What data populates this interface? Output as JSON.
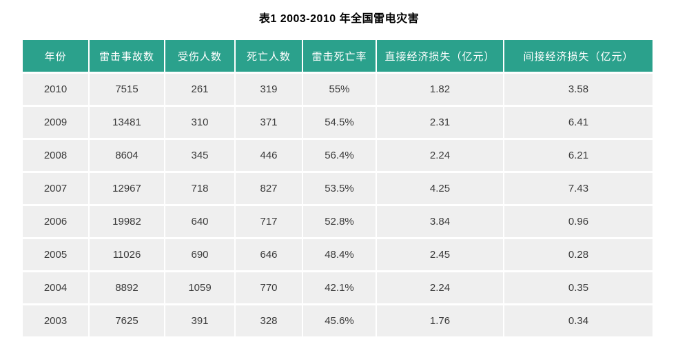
{
  "title": "表1 2003-2010 年全国雷电灾害",
  "colors": {
    "header_bg": "#2BA18C",
    "header_text": "#FFFFFF",
    "row_bg": "#EFEFEF",
    "cell_text": "#3A3A3A",
    "page_bg": "#FFFFFF"
  },
  "table": {
    "columns": [
      "年份",
      "雷击事故数",
      "受伤人数",
      "死亡人数",
      "雷击死亡率",
      "直接经济损失（亿元）",
      "间接经济损失（亿元）"
    ],
    "rows": [
      [
        "2010",
        "7515",
        "261",
        "319",
        "55%",
        "1.82",
        "3.58"
      ],
      [
        "2009",
        "13481",
        "310",
        "371",
        "54.5%",
        "2.31",
        "6.41"
      ],
      [
        "2008",
        "8604",
        "345",
        "446",
        "56.4%",
        "2.24",
        "6.21"
      ],
      [
        "2007",
        "12967",
        "718",
        "827",
        "53.5%",
        "4.25",
        "7.43"
      ],
      [
        "2006",
        "19982",
        "640",
        "717",
        "52.8%",
        "3.84",
        "0.96"
      ],
      [
        "2005",
        "11026",
        "690",
        "646",
        "48.4%",
        "2.45",
        "0.28"
      ],
      [
        "2004",
        "8892",
        "1059",
        "770",
        "42.1%",
        "2.24",
        "0.35"
      ],
      [
        "2003",
        "7625",
        "391",
        "328",
        "45.6%",
        "1.76",
        "0.34"
      ]
    ]
  },
  "chart_data": {
    "type": "table",
    "title": "表1 2003-2010 年全国雷电灾害",
    "columns": [
      "年份",
      "雷击事故数",
      "受伤人数",
      "死亡人数",
      "雷击死亡率",
      "直接经济损失（亿元）",
      "间接经济损失（亿元）"
    ],
    "rows": [
      {
        "年份": 2010,
        "雷击事故数": 7515,
        "受伤人数": 261,
        "死亡人数": 319,
        "雷击死亡率": "55%",
        "直接经济损失（亿元）": 1.82,
        "间接经济损失（亿元）": 3.58
      },
      {
        "年份": 2009,
        "雷击事故数": 13481,
        "受伤人数": 310,
        "死亡人数": 371,
        "雷击死亡率": "54.5%",
        "直接经济损失（亿元）": 2.31,
        "间接经济损失（亿元）": 6.41
      },
      {
        "年份": 2008,
        "雷击事故数": 8604,
        "受伤人数": 345,
        "死亡人数": 446,
        "雷击死亡率": "56.4%",
        "直接经济损失（亿元）": 2.24,
        "间接经济损失（亿元）": 6.21
      },
      {
        "年份": 2007,
        "雷击事故数": 12967,
        "受伤人数": 718,
        "死亡人数": 827,
        "雷击死亡率": "53.5%",
        "直接经济损失（亿元）": 4.25,
        "间接经济损失（亿元）": 7.43
      },
      {
        "年份": 2006,
        "雷击事故数": 19982,
        "受伤人数": 640,
        "死亡人数": 717,
        "雷击死亡率": "52.8%",
        "直接经济损失（亿元）": 3.84,
        "间接经济损失（亿元）": 0.96
      },
      {
        "年份": 2005,
        "雷击事故数": 11026,
        "受伤人数": 690,
        "死亡人数": 646,
        "雷击死亡率": "48.4%",
        "直接经济损失（亿元）": 2.45,
        "间接经济损失（亿元）": 0.28
      },
      {
        "年份": 2004,
        "雷击事故数": 8892,
        "受伤人数": 1059,
        "死亡人数": 770,
        "雷击死亡率": "42.1%",
        "直接经济损失（亿元）": 2.24,
        "间接经济损失（亿元）": 0.35
      },
      {
        "年份": 2003,
        "雷击事故数": 7625,
        "受伤人数": 391,
        "死亡人数": 328,
        "雷击死亡率": "45.6%",
        "直接经济损失（亿元）": 1.76,
        "间接经济损失（亿元）": 0.34
      }
    ]
  }
}
